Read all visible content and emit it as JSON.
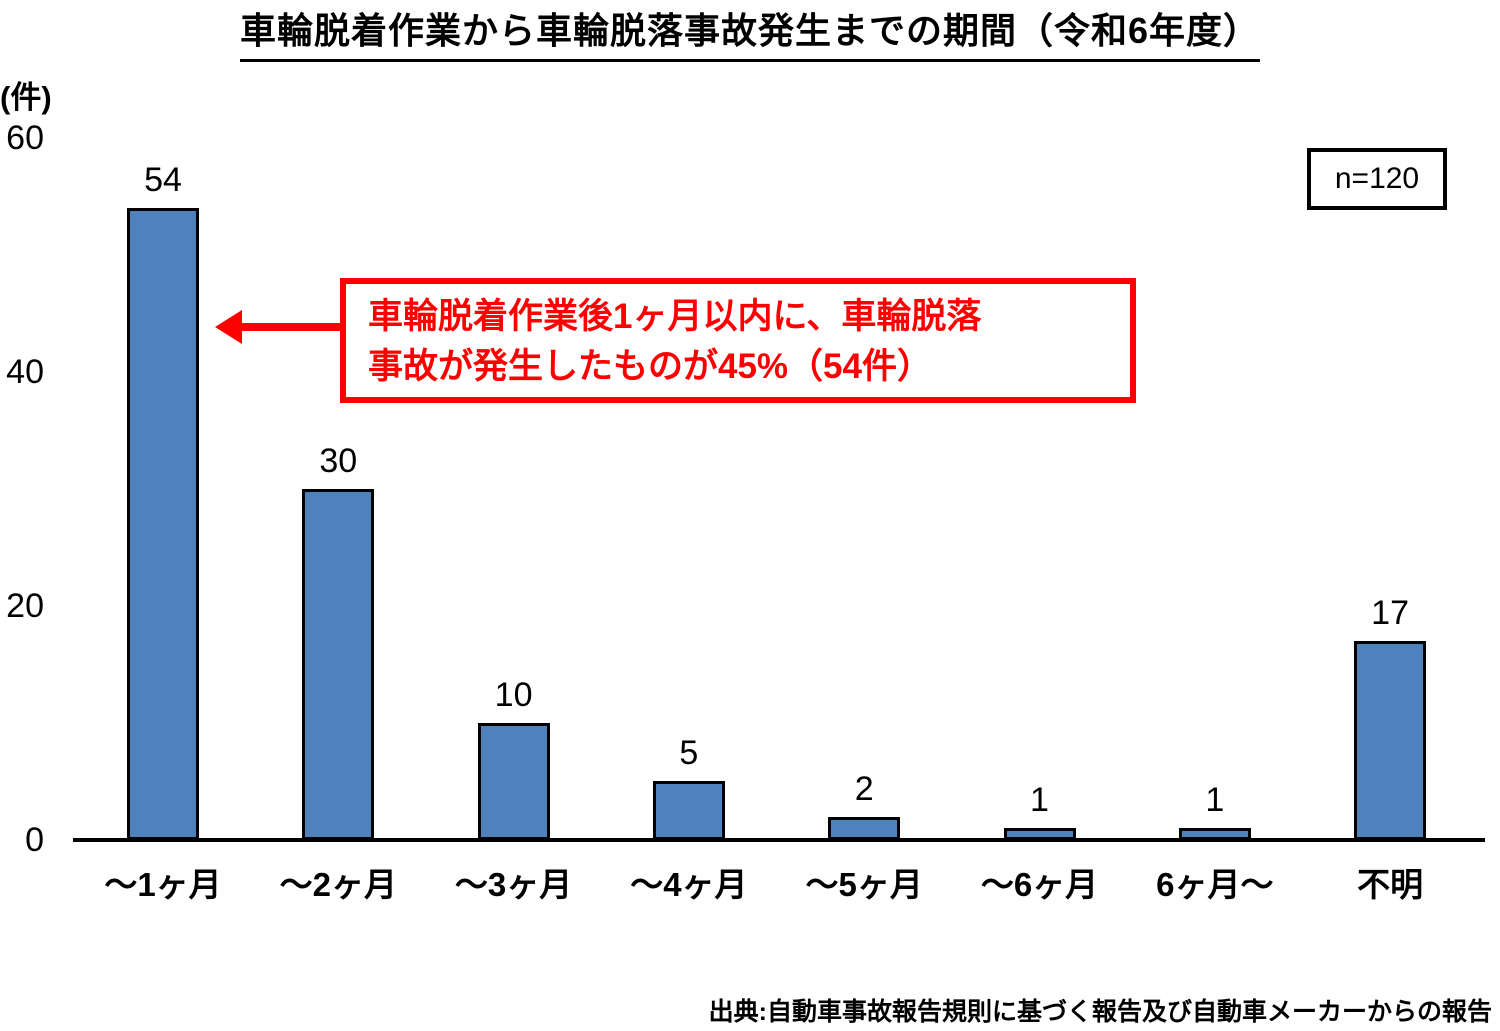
{
  "title": "車輪脱着作業から車輪脱落事故発生までの期間（令和6年度）",
  "y_axis_unit": "(件)",
  "sample_size_label": "n=120",
  "annotation": {
    "line1": "車輪脱着作業後1ヶ月以内に、車輪脱落",
    "line2": "事故が発生したものが45%（54件）"
  },
  "source": "出典:自動車事故報告規則に基づく報告及び自動車メーカーからの報告",
  "colors": {
    "bar_fill": "#4F81BD",
    "bar_border": "#000000",
    "annotation_red": "#FF0000",
    "text": "#000000"
  },
  "chart_data": {
    "type": "bar",
    "title": "車輪脱着作業から車輪脱落事故発生までの期間（令和6年度）",
    "categories": [
      "～1ヶ月",
      "～2ヶ月",
      "～3ヶ月",
      "～4ヶ月",
      "～5ヶ月",
      "～6ヶ月",
      "6ヶ月～",
      "不明"
    ],
    "values": [
      54,
      30,
      10,
      5,
      2,
      1,
      1,
      17
    ],
    "xlabel": "",
    "ylabel": "(件)",
    "ylim": [
      0,
      60
    ],
    "yticks": [
      0,
      20,
      40,
      60
    ],
    "grid": false,
    "legend": "none",
    "data_labels": true,
    "sample_size": 120
  }
}
